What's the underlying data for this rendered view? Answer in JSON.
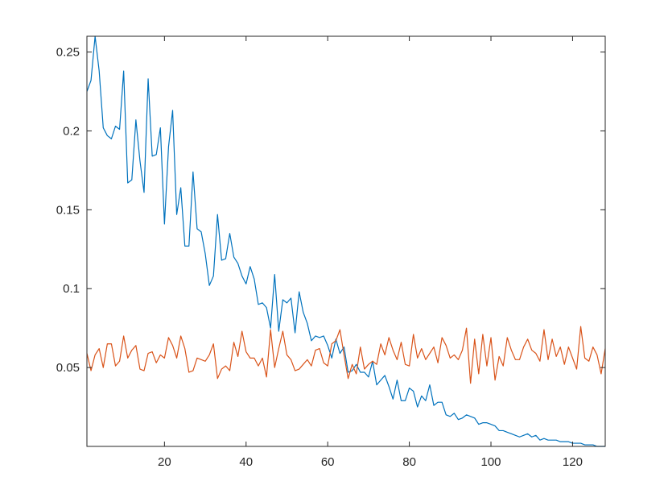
{
  "chart_data": {
    "type": "line",
    "title": "",
    "xlabel": "",
    "ylabel": "",
    "xlim": [
      1,
      128
    ],
    "ylim": [
      0,
      0.26
    ],
    "grid": false,
    "legend": "none",
    "x_ticks": [
      20,
      40,
      60,
      80,
      100,
      120
    ],
    "x_tick_labels": [
      "20",
      "40",
      "60",
      "80",
      "100",
      "120"
    ],
    "y_ticks": [
      0.05,
      0.1,
      0.15,
      0.2,
      0.25
    ],
    "y_tick_labels": [
      "0.05",
      "0.1",
      "0.15",
      "0.2",
      "0.25"
    ],
    "axis_color": "#262626",
    "x": [
      1,
      2,
      3,
      4,
      5,
      6,
      7,
      8,
      9,
      10,
      11,
      12,
      13,
      14,
      15,
      16,
      17,
      18,
      19,
      20,
      21,
      22,
      23,
      24,
      25,
      26,
      27,
      28,
      29,
      30,
      31,
      32,
      33,
      34,
      35,
      36,
      37,
      38,
      39,
      40,
      41,
      42,
      43,
      44,
      45,
      46,
      47,
      48,
      49,
      50,
      51,
      52,
      53,
      54,
      55,
      56,
      57,
      58,
      59,
      60,
      61,
      62,
      63,
      64,
      65,
      66,
      67,
      68,
      69,
      70,
      71,
      72,
      73,
      74,
      75,
      76,
      77,
      78,
      79,
      80,
      81,
      82,
      83,
      84,
      85,
      86,
      87,
      88,
      89,
      90,
      91,
      92,
      93,
      94,
      95,
      96,
      97,
      98,
      99,
      100,
      101,
      102,
      103,
      104,
      105,
      106,
      107,
      108,
      109,
      110,
      111,
      112,
      113,
      114,
      115,
      116,
      117,
      118,
      119,
      120,
      121,
      122,
      123,
      124,
      125,
      126,
      127,
      128
    ],
    "series": [
      {
        "color": "#0072BD",
        "values": [
          0.225,
          0.232,
          0.26,
          0.238,
          0.202,
          0.197,
          0.195,
          0.203,
          0.201,
          0.238,
          0.167,
          0.169,
          0.207,
          0.181,
          0.161,
          0.233,
          0.184,
          0.185,
          0.202,
          0.141,
          0.19,
          0.213,
          0.147,
          0.164,
          0.127,
          0.127,
          0.174,
          0.138,
          0.136,
          0.122,
          0.102,
          0.108,
          0.147,
          0.118,
          0.119,
          0.135,
          0.12,
          0.116,
          0.108,
          0.103,
          0.114,
          0.106,
          0.09,
          0.091,
          0.088,
          0.075,
          0.109,
          0.073,
          0.093,
          0.091,
          0.094,
          0.072,
          0.098,
          0.085,
          0.078,
          0.067,
          0.07,
          0.069,
          0.07,
          0.064,
          0.056,
          0.068,
          0.059,
          0.063,
          0.047,
          0.048,
          0.052,
          0.047,
          0.047,
          0.044,
          0.054,
          0.039,
          0.042,
          0.045,
          0.038,
          0.03,
          0.042,
          0.029,
          0.029,
          0.037,
          0.035,
          0.025,
          0.032,
          0.029,
          0.039,
          0.026,
          0.028,
          0.028,
          0.02,
          0.019,
          0.021,
          0.017,
          0.018,
          0.02,
          0.019,
          0.018,
          0.014,
          0.015,
          0.015,
          0.014,
          0.013,
          0.01,
          0.01,
          0.009,
          0.008,
          0.007,
          0.006,
          0.007,
          0.008,
          0.006,
          0.007,
          0.004,
          0.005,
          0.004,
          0.004,
          0.004,
          0.003,
          0.003,
          0.003,
          0.002,
          0.002,
          0.002,
          0.001,
          0.001,
          0.001,
          0.0,
          0.0,
          0.0
        ]
      },
      {
        "color": "#D95319",
        "values": [
          0.059,
          0.048,
          0.058,
          0.062,
          0.05,
          0.065,
          0.065,
          0.051,
          0.054,
          0.07,
          0.056,
          0.061,
          0.064,
          0.049,
          0.048,
          0.059,
          0.06,
          0.053,
          0.058,
          0.056,
          0.069,
          0.064,
          0.056,
          0.07,
          0.062,
          0.047,
          0.048,
          0.056,
          0.055,
          0.054,
          0.058,
          0.065,
          0.043,
          0.049,
          0.051,
          0.048,
          0.066,
          0.057,
          0.073,
          0.06,
          0.056,
          0.056,
          0.051,
          0.056,
          0.044,
          0.074,
          0.05,
          0.062,
          0.073,
          0.058,
          0.055,
          0.048,
          0.049,
          0.052,
          0.055,
          0.051,
          0.061,
          0.062,
          0.053,
          0.051,
          0.065,
          0.067,
          0.074,
          0.058,
          0.043,
          0.052,
          0.046,
          0.063,
          0.049,
          0.052,
          0.054,
          0.052,
          0.065,
          0.058,
          0.069,
          0.061,
          0.055,
          0.066,
          0.052,
          0.051,
          0.071,
          0.056,
          0.062,
          0.055,
          0.059,
          0.063,
          0.053,
          0.069,
          0.064,
          0.056,
          0.058,
          0.055,
          0.061,
          0.075,
          0.04,
          0.068,
          0.046,
          0.071,
          0.051,
          0.069,
          0.042,
          0.057,
          0.051,
          0.069,
          0.061,
          0.055,
          0.055,
          0.063,
          0.068,
          0.061,
          0.059,
          0.054,
          0.074,
          0.055,
          0.068,
          0.057,
          0.063,
          0.052,
          0.063,
          0.056,
          0.049,
          0.076,
          0.056,
          0.054,
          0.063,
          0.058,
          0.046,
          0.062
        ]
      }
    ]
  }
}
